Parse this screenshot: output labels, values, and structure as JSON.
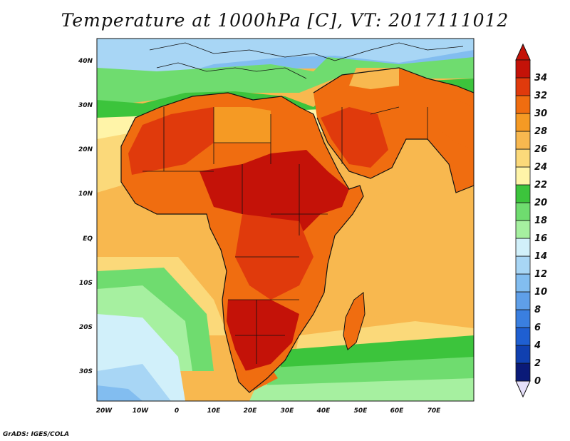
{
  "title": "Temperature at 1000hPa [C], VT: 2017111012",
  "credit": "GrADS: IGES/COLA",
  "map": {
    "projection": "lat-lon",
    "lon_range": [
      -23,
      80
    ],
    "lat_range": [
      -37,
      45
    ],
    "lon_ticks": [
      "20W",
      "10W",
      "0",
      "10E",
      "20E",
      "30E",
      "40E",
      "50E",
      "60E",
      "70E"
    ],
    "lat_ticks": [
      "40N",
      "30N",
      "20N",
      "10N",
      "EQ",
      "10S",
      "20S",
      "30S"
    ]
  },
  "colorbar": {
    "labels": [
      "0",
      "2",
      "4",
      "6",
      "8",
      "10",
      "12",
      "14",
      "16",
      "18",
      "20",
      "22",
      "24",
      "26",
      "28",
      "30",
      "32",
      "34"
    ],
    "colors": [
      "#0a1a78",
      "#1040b0",
      "#1f5fd1",
      "#3a7fe0",
      "#5f9fe8",
      "#82bdf0",
      "#a8d6f5",
      "#d1f0fa",
      "#a6f0a0",
      "#6fdc6f",
      "#3cc43c",
      "#fff4a8",
      "#fbd97a",
      "#f8b84f",
      "#f59a24",
      "#f06d10",
      "#e03a0c",
      "#c41208"
    ],
    "under_color": "#e6e0fa",
    "over_color": "#c41208"
  }
}
